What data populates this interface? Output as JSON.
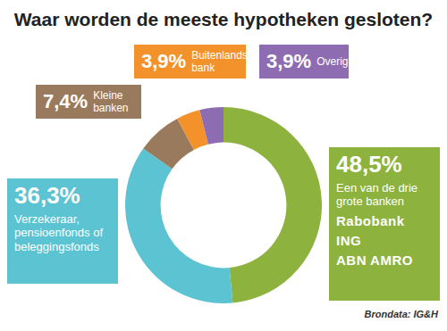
{
  "chart_data": {
    "type": "doughnut",
    "title": "Waar worden de meeste hypotheken gesloten?",
    "categories": [
      "Een van de drie grote banken",
      "Verzekeraar, pensioenfonds of beleggingsfonds",
      "Kleine banken",
      "Buitenlandse bank",
      "Overig"
    ],
    "values": [
      48.5,
      36.3,
      7.4,
      3.9,
      3.9
    ],
    "value_labels": [
      "48,5%",
      "36,3%",
      "7,4%",
      "3,9%",
      "3,9%"
    ],
    "colors": [
      "#8db33e",
      "#5bc3d2",
      "#9a7a5c",
      "#f3922a",
      "#8d6cb2"
    ],
    "data_labels": true,
    "legend": "none",
    "annotations": [
      "Rabobank",
      "ING",
      "ABN AMRO"
    ],
    "source": "Brondata: IG&H"
  }
}
